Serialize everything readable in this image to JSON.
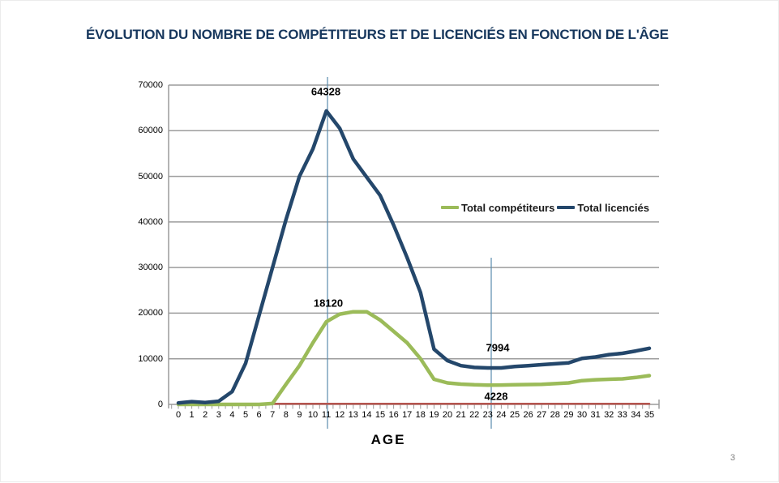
{
  "slide": {
    "title": "ÉVOLUTION DU NOMBRE DE COMPÉTITEURS ET DE LICENCIÉS EN FONCTION DE L'ÂGE",
    "page_number": "3"
  },
  "chart_data": {
    "type": "line",
    "title": "",
    "xlabel": "AGE",
    "ylabel": "",
    "x": [
      0,
      1,
      2,
      3,
      4,
      5,
      6,
      7,
      8,
      9,
      10,
      11,
      12,
      13,
      14,
      15,
      16,
      17,
      18,
      19,
      20,
      21,
      22,
      23,
      24,
      25,
      26,
      27,
      28,
      29,
      30,
      31,
      32,
      33,
      34,
      35
    ],
    "ylim": [
      0,
      70000
    ],
    "y_ticks": [
      0,
      10000,
      20000,
      30000,
      40000,
      50000,
      60000,
      70000
    ],
    "grid": true,
    "legend_position": "middle-right",
    "series": [
      {
        "name": "Total compétiteurs",
        "color": "#9BBB59",
        "values": [
          0,
          0,
          0,
          0,
          0,
          0,
          0,
          200,
          4400,
          8500,
          13500,
          18120,
          19800,
          20300,
          20300,
          18500,
          16000,
          13500,
          10000,
          5500,
          4700,
          4450,
          4300,
          4228,
          4250,
          4300,
          4350,
          4400,
          4550,
          4700,
          5200,
          5400,
          5500,
          5600,
          5900,
          6300
        ]
      },
      {
        "name": "Total licenciés",
        "color": "#24476B",
        "values": [
          300,
          600,
          400,
          700,
          2800,
          9000,
          19500,
          30000,
          40500,
          50000,
          56000,
          64328,
          60500,
          53800,
          49800,
          45800,
          39300,
          32200,
          24500,
          12100,
          9600,
          8500,
          8100,
          7994,
          8000,
          8300,
          8500,
          8700,
          8900,
          9100,
          10100,
          10400,
          10900,
          11200,
          11700,
          12300
        ]
      },
      {
        "name": "unlabeled-red-baseline",
        "color": "#B5544E",
        "values": [
          120,
          120,
          120,
          120,
          120,
          120,
          120,
          120,
          120,
          120,
          120,
          120,
          120,
          120,
          120,
          120,
          120,
          120,
          120,
          120,
          120,
          120,
          120,
          120,
          120,
          120,
          120,
          120,
          120,
          120,
          120,
          120,
          120,
          120,
          120,
          120
        ]
      }
    ],
    "annotations": [
      {
        "label": "64328",
        "series": "Total licenciés",
        "age": 11
      },
      {
        "label": "18120",
        "series": "Total compétiteurs",
        "age": 11
      },
      {
        "label": "7994",
        "series": "Total licenciés",
        "age": 23
      },
      {
        "label": "4228",
        "series": "Total compétiteurs",
        "age": 23
      }
    ],
    "highlight_lines": [
      {
        "age": 11,
        "color": "#5B8CAE"
      },
      {
        "age": 23,
        "color": "#5B8CAE"
      }
    ],
    "axis_color": "#9C9C9C"
  }
}
